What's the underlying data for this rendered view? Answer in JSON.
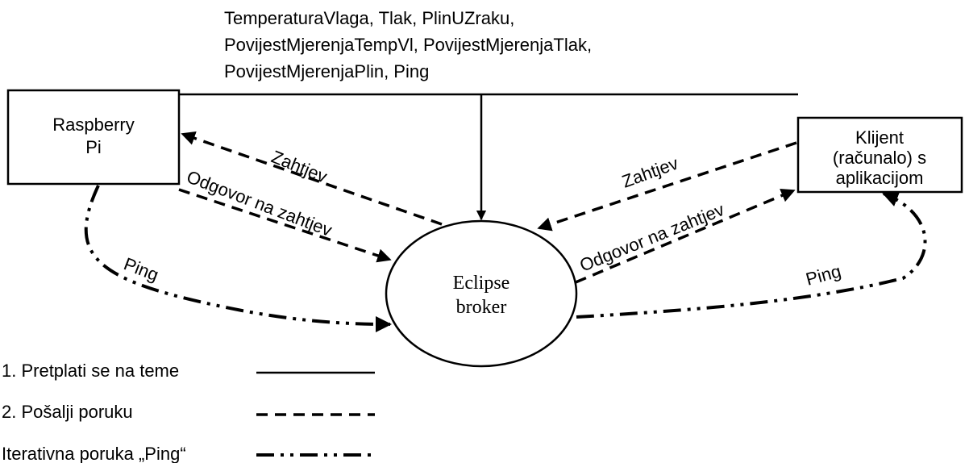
{
  "topics": [
    "TemperaturaVlaga, Tlak, PlinUZraku,",
    "PovijestMjerenjaTempVl, PovijestMjerenjaTlak,",
    "PovijestMjerenjaPlin, Ping"
  ],
  "nodes": {
    "raspberry": [
      "Raspberry",
      "Pi"
    ],
    "client": [
      "Klijent",
      "(računalo) s",
      "aplikacijom"
    ],
    "broker": [
      "Eclipse",
      "broker"
    ]
  },
  "edges": {
    "left_request": "Zahtjev",
    "left_response": "Odgovor na zahtjev",
    "right_request": "Zahtjev",
    "right_response": "Odgovor na zahtjev",
    "left_ping": "Ping",
    "right_ping": "Ping"
  },
  "legend": [
    "1. Pretplati se na teme",
    "2. Pošalji poruku",
    "Iterativna poruka „Ping“"
  ]
}
